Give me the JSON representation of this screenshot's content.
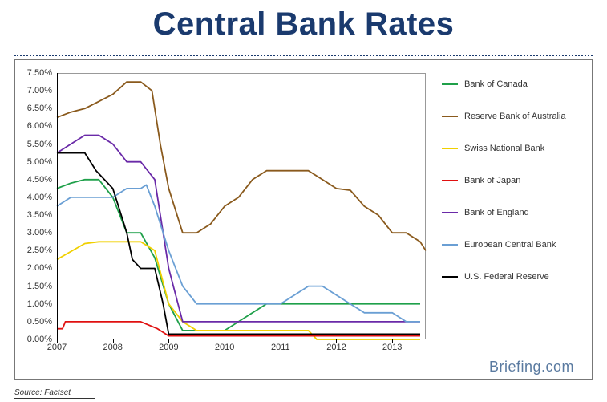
{
  "title": "Central Bank Rates",
  "source_label": "Source: Factset",
  "brand": "Briefing.com",
  "chart": {
    "type": "line",
    "background_color": "#ffffff",
    "border_color": "#777777",
    "grid": false,
    "xlabel": "",
    "ylabel": "",
    "xlim": [
      2007,
      2013.6
    ],
    "ylim": [
      0,
      7.5
    ],
    "xticks": [
      2007,
      2008,
      2009,
      2010,
      2011,
      2012,
      2013
    ],
    "xtick_labels": [
      "2007",
      "2008",
      "2009",
      "2010",
      "2011",
      "2012",
      "2013"
    ],
    "yticks": [
      0.0,
      0.5,
      1.0,
      1.5,
      2.0,
      2.5,
      3.0,
      3.5,
      4.0,
      4.5,
      5.0,
      5.5,
      6.0,
      6.5,
      7.0,
      7.5
    ],
    "ytick_labels": [
      "0.00%",
      "0.50%",
      "1.00%",
      "1.50%",
      "2.00%",
      "2.50%",
      "3.00%",
      "3.50%",
      "4.00%",
      "4.50%",
      "5.00%",
      "5.50%",
      "6.00%",
      "6.50%",
      "7.00%",
      "7.50%"
    ],
    "ytick_fontsize": 11,
    "xtick_fontsize": 11,
    "line_width": 1.8,
    "series": [
      {
        "name": "Bank of Canada",
        "color": "#1fa04a",
        "x": [
          2007.0,
          2007.25,
          2007.5,
          2007.75,
          2008.0,
          2008.25,
          2008.5,
          2008.75,
          2009.0,
          2009.25,
          2009.5,
          2009.75,
          2010.0,
          2010.25,
          2010.5,
          2010.75,
          2011.0,
          2011.25,
          2011.5,
          2011.75,
          2012.0,
          2012.5,
          2013.0,
          2013.5
        ],
        "y": [
          4.25,
          4.4,
          4.5,
          4.5,
          4.0,
          3.0,
          3.0,
          2.3,
          1.0,
          0.25,
          0.25,
          0.25,
          0.25,
          0.5,
          0.75,
          1.0,
          1.0,
          1.0,
          1.0,
          1.0,
          1.0,
          1.0,
          1.0,
          1.0
        ]
      },
      {
        "name": "Reserve Bank of Australia",
        "color": "#8a5a1d",
        "x": [
          2007.0,
          2007.25,
          2007.5,
          2007.75,
          2008.0,
          2008.25,
          2008.5,
          2008.7,
          2008.85,
          2009.0,
          2009.25,
          2009.5,
          2009.75,
          2010.0,
          2010.25,
          2010.5,
          2010.75,
          2011.0,
          2011.25,
          2011.5,
          2011.75,
          2012.0,
          2012.25,
          2012.5,
          2012.75,
          2013.0,
          2013.25,
          2013.5,
          2013.6
        ],
        "y": [
          6.25,
          6.4,
          6.5,
          6.7,
          6.9,
          7.25,
          7.25,
          7.0,
          5.5,
          4.25,
          3.0,
          3.0,
          3.25,
          3.75,
          4.0,
          4.5,
          4.75,
          4.75,
          4.75,
          4.75,
          4.5,
          4.25,
          4.2,
          3.75,
          3.5,
          3.0,
          3.0,
          2.75,
          2.5
        ]
      },
      {
        "name": "Swiss National Bank",
        "color": "#f0d000",
        "x": [
          2007.0,
          2007.5,
          2007.75,
          2008.0,
          2008.5,
          2008.75,
          2009.0,
          2009.25,
          2009.5,
          2010.0,
          2010.5,
          2011.0,
          2011.25,
          2011.5,
          2011.65,
          2012.0,
          2012.5,
          2013.0,
          2013.5
        ],
        "y": [
          2.25,
          2.7,
          2.75,
          2.75,
          2.75,
          2.5,
          1.0,
          0.5,
          0.25,
          0.25,
          0.25,
          0.25,
          0.25,
          0.25,
          0.0,
          0.0,
          0.0,
          0.0,
          0.0
        ]
      },
      {
        "name": "Bank of Japan",
        "color": "#e01010",
        "x": [
          2007.0,
          2007.1,
          2007.15,
          2008.0,
          2008.5,
          2008.8,
          2009.0,
          2010.0,
          2011.0,
          2012.0,
          2013.0,
          2013.5
        ],
        "y": [
          0.3,
          0.3,
          0.5,
          0.5,
          0.5,
          0.3,
          0.1,
          0.1,
          0.1,
          0.1,
          0.1,
          0.1
        ]
      },
      {
        "name": "Bank of England",
        "color": "#6a2aa8",
        "x": [
          2007.0,
          2007.25,
          2007.5,
          2007.75,
          2008.0,
          2008.25,
          2008.5,
          2008.75,
          2009.0,
          2009.25,
          2009.5,
          2010.0,
          2011.0,
          2012.0,
          2013.0,
          2013.5
        ],
        "y": [
          5.25,
          5.5,
          5.75,
          5.75,
          5.5,
          5.0,
          5.0,
          4.5,
          2.0,
          0.5,
          0.5,
          0.5,
          0.5,
          0.5,
          0.5,
          0.5
        ]
      },
      {
        "name": "European Central Bank",
        "color": "#6a9fd4",
        "x": [
          2007.0,
          2007.25,
          2007.5,
          2008.0,
          2008.25,
          2008.5,
          2008.6,
          2008.75,
          2009.0,
          2009.25,
          2009.5,
          2010.0,
          2010.5,
          2011.0,
          2011.25,
          2011.5,
          2011.75,
          2012.0,
          2012.25,
          2012.5,
          2013.0,
          2013.25,
          2013.5
        ],
        "y": [
          3.75,
          4.0,
          4.0,
          4.0,
          4.25,
          4.25,
          4.35,
          3.75,
          2.5,
          1.5,
          1.0,
          1.0,
          1.0,
          1.0,
          1.25,
          1.5,
          1.5,
          1.25,
          1.0,
          0.75,
          0.75,
          0.5,
          0.5
        ]
      },
      {
        "name": "U.S. Federal Reserve",
        "color": "#000000",
        "x": [
          2007.0,
          2007.25,
          2007.5,
          2007.7,
          2007.85,
          2008.0,
          2008.15,
          2008.25,
          2008.35,
          2008.5,
          2008.75,
          2008.9,
          2009.0,
          2009.5,
          2010.0,
          2011.0,
          2012.0,
          2013.0,
          2013.5
        ],
        "y": [
          5.25,
          5.25,
          5.25,
          4.75,
          4.5,
          4.25,
          3.5,
          3.0,
          2.25,
          2.0,
          2.0,
          1.0,
          0.15,
          0.15,
          0.15,
          0.15,
          0.15,
          0.15,
          0.15
        ]
      }
    ]
  }
}
